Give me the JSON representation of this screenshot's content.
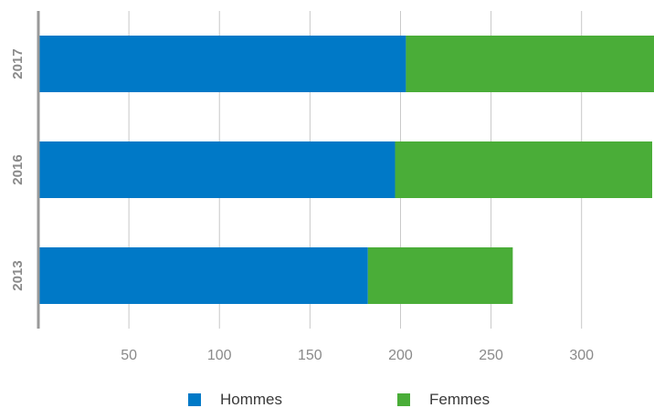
{
  "chart_data": {
    "type": "bar",
    "orientation": "horizontal",
    "stacked": true,
    "categories": [
      "2017",
      "2016",
      "2013"
    ],
    "series": [
      {
        "name": "Hommes",
        "values": [
          203,
          197,
          182
        ],
        "color": "#0079c7"
      },
      {
        "name": "Femmes",
        "values": [
          137,
          142,
          80
        ],
        "color": "#4aad38"
      }
    ],
    "xlim": [
      0,
      340
    ],
    "xticks": [
      50,
      100,
      150,
      200,
      250,
      300
    ],
    "grid": true,
    "legend_position": "bottom"
  }
}
